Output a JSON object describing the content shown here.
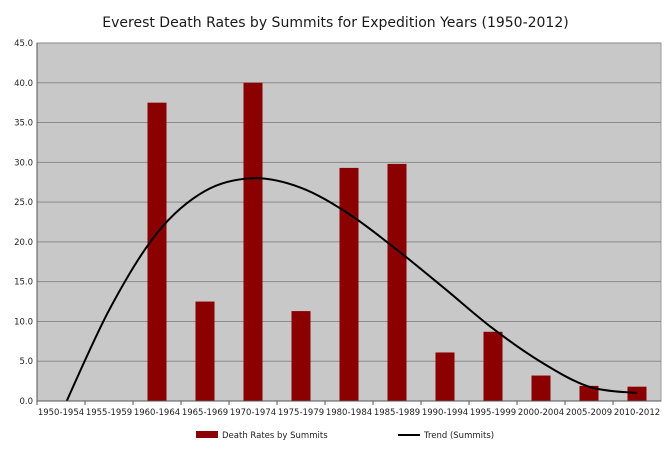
{
  "chart_data": {
    "type": "bar",
    "title": "Everest Death Rates by Summits for Expedition Years (1950-2012)",
    "xlabel": "",
    "ylabel": "",
    "ylim": [
      0,
      45
    ],
    "y_ticks": [
      "0.0",
      "5.0",
      "10.0",
      "15.0",
      "20.0",
      "25.0",
      "30.0",
      "35.0",
      "40.0",
      "45.0"
    ],
    "categories": [
      "1950-1954",
      "1955-1959",
      "1960-1964",
      "1965-1969",
      "1970-1974",
      "1975-1979",
      "1980-1984",
      "1985-1989",
      "1990-1994",
      "1995-1999",
      "2000-2004",
      "2005-2009",
      "2010-2012"
    ],
    "series": [
      {
        "name": "Death Rates by Summits",
        "kind": "bar",
        "color": "#8b0000",
        "values": [
          0,
          0,
          37.5,
          12.5,
          40.0,
          11.3,
          29.3,
          29.8,
          6.1,
          8.7,
          3.2,
          1.9,
          1.8
        ]
      },
      {
        "name": "Trend (Summits)",
        "kind": "line",
        "color": "#000000",
        "values": [
          -1.6,
          11.4,
          21.1,
          26.4,
          28.0,
          26.8,
          23.5,
          19.0,
          14.1,
          9.1,
          4.9,
          1.8,
          1.0
        ]
      }
    ],
    "plot_background": "#c8c8c8",
    "grid": true,
    "legend_position": "bottom"
  }
}
